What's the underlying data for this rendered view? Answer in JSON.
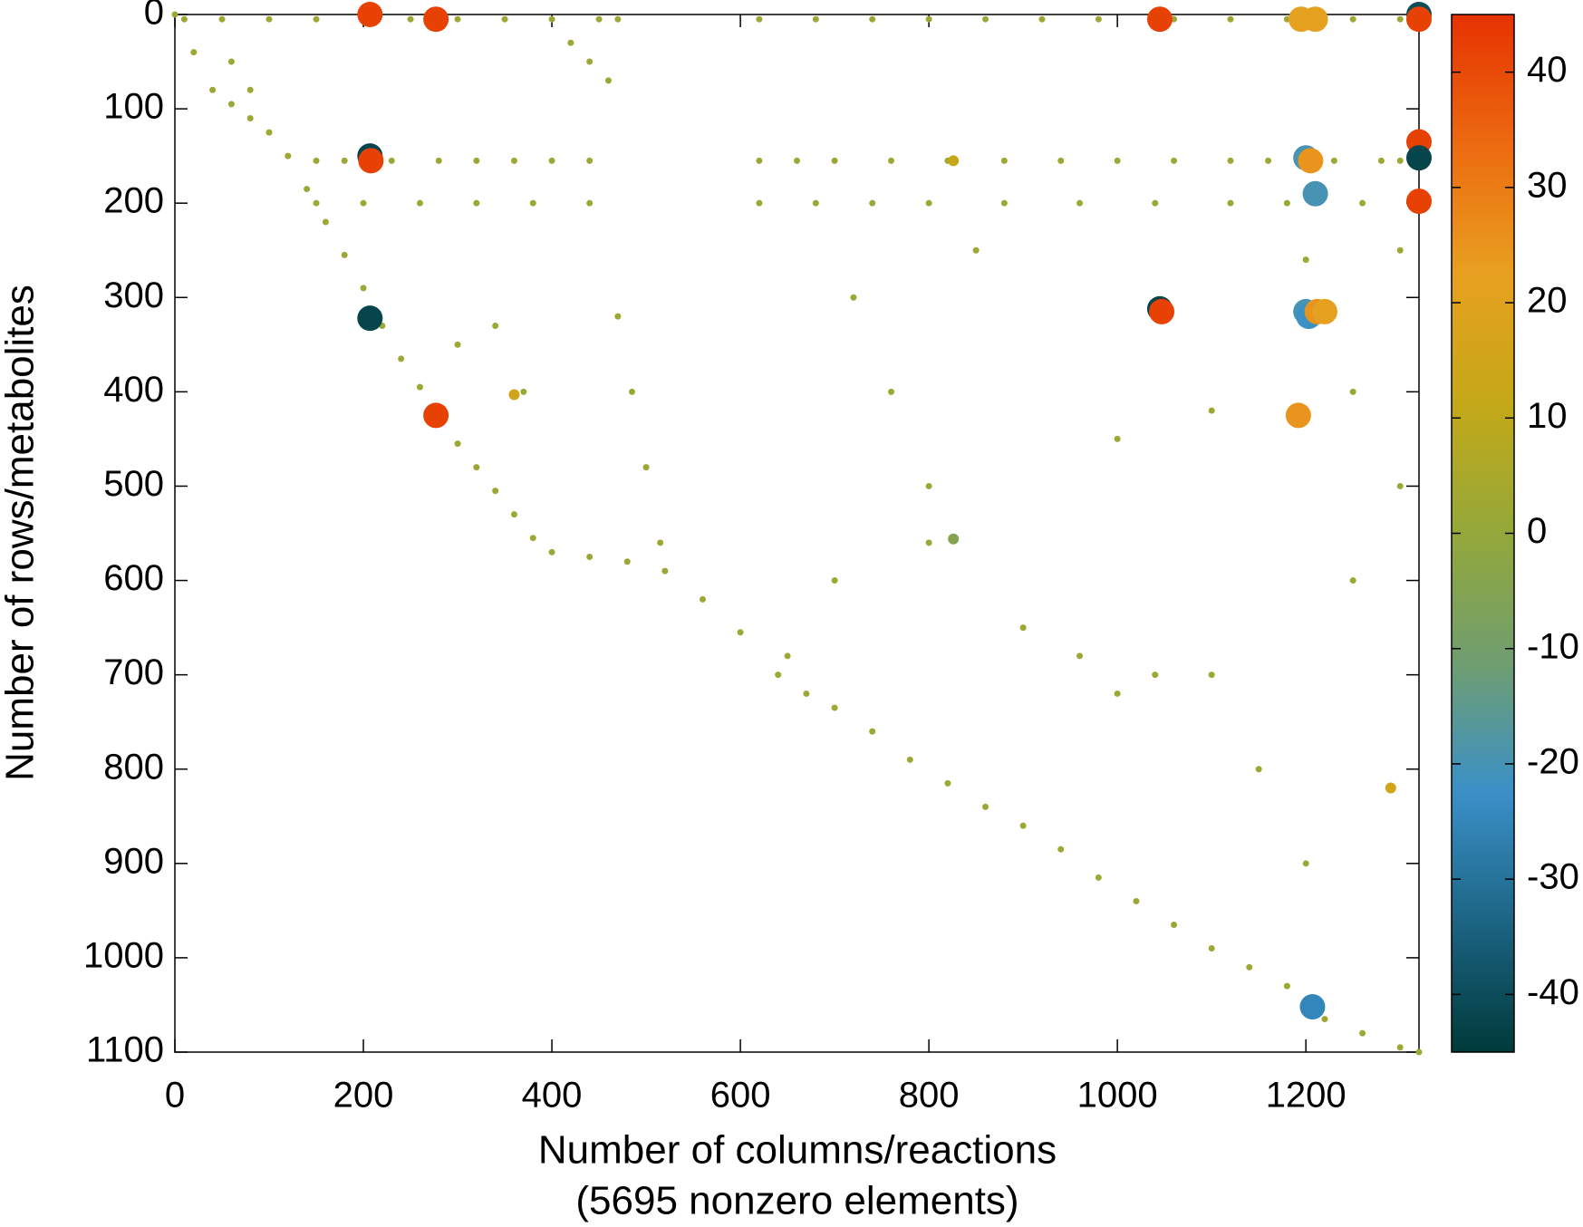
{
  "chart_data": {
    "type": "scatter",
    "x_label": "Number of columns/reactions",
    "x_label_note": "(5695 nonzero elements)",
    "y_label": "Number of rows/metabolites",
    "xlim": [
      0,
      1320
    ],
    "xticks": [
      0,
      200,
      400,
      600,
      800,
      1000,
      1200
    ],
    "ylim": [
      0,
      1100
    ],
    "yticks": [
      0,
      100,
      200,
      300,
      400,
      500,
      600,
      700,
      800,
      900,
      1000,
      1100
    ],
    "y_reversed": true,
    "clim": [
      -45,
      45
    ],
    "cticks": [
      -40,
      -30,
      -20,
      -10,
      0,
      10,
      20,
      30,
      40
    ],
    "colormap": [
      "#003a3a",
      "#1c6483",
      "#3a90c8",
      "#6f9e70",
      "#94a83a",
      "#c4a818",
      "#e8a020",
      "#ec6a10",
      "#e63200"
    ],
    "series": [
      {
        "x": [
          0,
          20,
          40,
          60,
          80,
          100,
          120,
          140,
          160,
          180,
          200,
          220,
          240,
          260,
          280,
          300,
          320,
          340,
          360,
          380,
          400,
          440,
          480,
          520,
          560,
          600,
          640,
          670,
          700,
          740,
          780,
          820,
          860,
          900,
          940,
          980,
          1020,
          1060,
          1100,
          1140,
          1180,
          1220,
          1260,
          1300,
          1320,
          10,
          50,
          100,
          150,
          200,
          250,
          300,
          350,
          400,
          450,
          470,
          620,
          680,
          740,
          800,
          860,
          920,
          980,
          1060,
          1120,
          1180,
          1250,
          1300,
          150,
          180,
          230,
          280,
          320,
          360,
          400,
          440,
          620,
          660,
          700,
          760,
          820,
          880,
          940,
          1000,
          1060,
          1120,
          1160,
          1230,
          1280,
          1300,
          150,
          200,
          260,
          320,
          380,
          440,
          620,
          680,
          740,
          800,
          880,
          960,
          1040,
          1120,
          1180,
          1260,
          420,
          440,
          460,
          60,
          80,
          470,
          485,
          500,
          515,
          340,
          370,
          300,
          720,
          760,
          800,
          900,
          850,
          800,
          700,
          650,
          960,
          1000,
          1040,
          1100,
          1150,
          1200,
          1250,
          1290,
          1300,
          1250,
          1100,
          1000,
          1300,
          1200,
          826,
          360,
          826
        ],
        "y": [
          0,
          40,
          80,
          95,
          110,
          125,
          150,
          185,
          220,
          255,
          290,
          330,
          365,
          395,
          430,
          455,
          480,
          505,
          530,
          555,
          570,
          575,
          580,
          590,
          620,
          655,
          700,
          720,
          735,
          760,
          790,
          815,
          840,
          860,
          885,
          915,
          940,
          965,
          990,
          1010,
          1030,
          1065,
          1080,
          1095,
          1100,
          5,
          5,
          5,
          5,
          5,
          5,
          5,
          5,
          5,
          5,
          5,
          5,
          5,
          5,
          5,
          5,
          5,
          5,
          5,
          5,
          5,
          5,
          5,
          155,
          155,
          155,
          155,
          155,
          155,
          155,
          155,
          155,
          155,
          155,
          155,
          155,
          155,
          155,
          155,
          155,
          155,
          155,
          155,
          155,
          155,
          200,
          200,
          200,
          200,
          200,
          200,
          200,
          200,
          200,
          200,
          200,
          200,
          200,
          200,
          200,
          200,
          30,
          50,
          70,
          50,
          80,
          320,
          400,
          480,
          560,
          330,
          400,
          350,
          300,
          400,
          500,
          650,
          250,
          560,
          600,
          680,
          680,
          720,
          700,
          700,
          800,
          900,
          600,
          820,
          500,
          400,
          420,
          450,
          250,
          260,
          155,
          403,
          556
        ],
        "c": [
          2,
          2,
          2,
          2,
          2,
          2,
          2,
          2,
          2,
          2,
          2,
          2,
          2,
          2,
          2,
          2,
          2,
          2,
          2,
          2,
          2,
          2,
          2,
          2,
          2,
          2,
          2,
          2,
          2,
          2,
          2,
          2,
          2,
          2,
          2,
          2,
          2,
          2,
          2,
          2,
          2,
          2,
          2,
          2,
          2,
          2,
          2,
          2,
          2,
          2,
          2,
          2,
          2,
          2,
          2,
          2,
          2,
          2,
          2,
          2,
          2,
          2,
          2,
          2,
          2,
          2,
          2,
          2,
          2,
          2,
          2,
          2,
          2,
          2,
          2,
          2,
          2,
          2,
          2,
          2,
          2,
          2,
          2,
          2,
          2,
          2,
          2,
          2,
          2,
          2,
          2,
          2,
          2,
          2,
          2,
          2,
          2,
          2,
          2,
          2,
          2,
          2,
          2,
          2,
          2,
          2,
          2,
          2,
          2,
          2,
          2,
          2,
          2,
          2,
          2,
          2,
          2,
          2,
          2,
          2,
          2,
          2,
          2,
          2,
          2,
          2,
          2,
          2,
          2,
          2,
          2,
          2,
          2,
          15,
          2,
          2,
          2,
          2,
          2,
          2,
          12,
          15,
          -5
        ]
      },
      {
        "x": [
          207,
          277,
          1045,
          1195,
          1210,
          1320,
          1320,
          1320,
          1320,
          1320,
          207,
          208,
          207,
          277,
          1045,
          1047,
          1200,
          1205,
          1210,
          1200,
          1203,
          1212,
          1220,
          1192,
          1207
        ],
        "y": [
          0,
          5,
          5,
          5,
          5,
          0,
          5,
          135,
          152,
          198,
          150,
          155,
          322,
          425,
          312,
          315,
          152,
          155,
          190,
          315,
          320,
          315,
          315,
          425,
          1052
        ],
        "c": [
          42,
          42,
          42,
          22,
          22,
          -40,
          42,
          42,
          -42,
          42,
          -42,
          42,
          -42,
          42,
          -42,
          42,
          -20,
          25,
          -20,
          -20,
          -22,
          25,
          22,
          25,
          -25
        ]
      }
    ]
  }
}
